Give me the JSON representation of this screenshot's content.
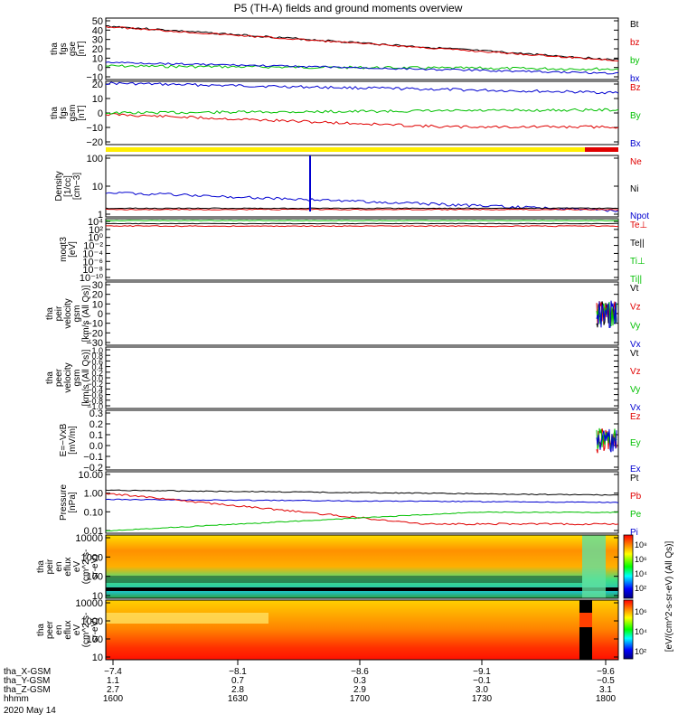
{
  "title": "P5 (TH-A) fields and ground moments overview",
  "panels": [
    {
      "id": "fgs_gse",
      "ylabel": [
        "tha",
        "fgs",
        "gse",
        "[nT]"
      ],
      "ticks": [
        "50",
        "40",
        "30",
        "20",
        "10",
        "0",
        "−10"
      ],
      "legend": [
        {
          "text": "Bt",
          "color": "#000000"
        },
        {
          "text": "bz",
          "color": "#e00000"
        },
        {
          "text": "by",
          "color": "#00c000"
        },
        {
          "text": "bx",
          "color": "#0000d0"
        }
      ]
    },
    {
      "id": "fgs_gsm",
      "ylabel": [
        "tha",
        "fgs",
        "gsm",
        "[nT]"
      ],
      "ticks": [
        "20",
        "10",
        "0",
        "−10",
        "−20"
      ],
      "legend": [
        {
          "text": "Bz",
          "color": "#e00000"
        },
        {
          "text": "By",
          "color": "#00c000"
        },
        {
          "text": "Bx",
          "color": "#0000d0"
        }
      ]
    },
    {
      "id": "density",
      "ylabel": [
        "Density",
        "[1/cc]",
        "[cm−3]"
      ],
      "ticks": [
        "100",
        "10",
        "1"
      ],
      "legend": [
        {
          "text": "Ne",
          "color": "#e00000"
        },
        {
          "text": "Ni",
          "color": "#000000"
        },
        {
          "text": "Npot",
          "color": "#0000d0"
        }
      ]
    },
    {
      "id": "temp",
      "ylabel": [
        "moqt3",
        "[eV]"
      ],
      "ticks": [
        "10⁴",
        "10²",
        "10⁰",
        "10⁻²",
        "10⁻⁴",
        "10⁻⁶",
        "10⁻⁸",
        "10⁻¹⁰"
      ],
      "legend": [
        {
          "text": "Te⊥",
          "color": "#e00000"
        },
        {
          "text": "Te||",
          "color": "#000000"
        },
        {
          "text": "Ti⊥",
          "color": "#00c000"
        },
        {
          "text": "Ti||",
          "color": "#00c000"
        }
      ]
    },
    {
      "id": "peir_vel",
      "ylabel": [
        "tha",
        "peir",
        "velocity",
        "gsm",
        "[km/s (All Qs)]"
      ],
      "ticks": [
        "30",
        "20",
        "10",
        "0",
        "−10",
        "−20",
        "−30"
      ],
      "legend": [
        {
          "text": "Vt",
          "color": "#000000"
        },
        {
          "text": "Vz",
          "color": "#e00000"
        },
        {
          "text": "Vy",
          "color": "#00c000"
        },
        {
          "text": "Vx",
          "color": "#0000d0"
        }
      ]
    },
    {
      "id": "peer_vel",
      "ylabel": [
        "tha",
        "peer",
        "velocity",
        "gsm",
        "[km/s (All Qs)]"
      ],
      "ticks": [
        "1.0",
        "0.8",
        "0.6",
        "0.4",
        "0.2",
        "0.0",
        "−0.2",
        "−0.4",
        "−0.6",
        "−0.8",
        "−1.0"
      ],
      "legend": [
        {
          "text": "Vt",
          "color": "#000000"
        },
        {
          "text": "Vz",
          "color": "#e00000"
        },
        {
          "text": "Vy",
          "color": "#00c000"
        },
        {
          "text": "Vx",
          "color": "#0000d0"
        }
      ]
    },
    {
      "id": "efield",
      "ylabel": [
        "E=−VxB",
        "[mV/m]"
      ],
      "ticks": [
        "0.3",
        "0.2",
        "0.1",
        "0.0",
        "−0.1",
        "−0.2"
      ],
      "legend": [
        {
          "text": "Ez",
          "color": "#e00000"
        },
        {
          "text": "Ey",
          "color": "#00c000"
        },
        {
          "text": "Ex",
          "color": "#0000d0"
        }
      ]
    },
    {
      "id": "pressure",
      "ylabel": [
        "Pressure",
        "[nPa]"
      ],
      "ticks": [
        "10.00",
        "1.00",
        "0.10",
        "0.01"
      ],
      "legend": [
        {
          "text": "Pt",
          "color": "#000000"
        },
        {
          "text": "Pb",
          "color": "#e00000"
        },
        {
          "text": "Pe",
          "color": "#00c000"
        },
        {
          "text": "Pi",
          "color": "#0000d0"
        }
      ]
    },
    {
      "id": "peir_en",
      "ylabel": [
        "tha",
        "peir",
        "en",
        "eflux",
        "eV",
        "(cm^2-s-",
        "sr-eV)"
      ],
      "ticks": [
        "10000",
        "1000",
        "100",
        "10"
      ],
      "legend": []
    },
    {
      "id": "peer_en",
      "ylabel": [
        "tha",
        "peer",
        "en",
        "eflux",
        "eV",
        "(cm^2-s-",
        "sr-eV)"
      ],
      "ticks": [
        "10000",
        "1000",
        "100",
        "10"
      ],
      "legend": []
    }
  ],
  "colorbar": {
    "label": "[eV/(cm^2-s-sr-eV) (All Qs)]",
    "ticks_top": [
      "10⁸",
      "10⁶",
      "10⁴",
      "10²"
    ],
    "ticks_bottom": [
      "10⁶",
      "10⁴",
      "10²"
    ]
  },
  "footer": {
    "rows": [
      {
        "label": "tha_X-GSM",
        "values": [
          "−7.4",
          "−8.1",
          "−8.6",
          "−9.1",
          "−9.6"
        ]
      },
      {
        "label": "tha_Y-GSM",
        "values": [
          "1.1",
          "0.7",
          "0.3",
          "−0.1",
          "−0.5"
        ]
      },
      {
        "label": "tha_Z-GSM",
        "values": [
          "2.7",
          "2.8",
          "2.9",
          "3.0",
          "3.1"
        ]
      },
      {
        "label": "hhmm",
        "values": [
          "1600",
          "1630",
          "1700",
          "1730",
          "1800"
        ]
      }
    ],
    "date": "2020 May 14"
  },
  "chart_data": {
    "type": "line",
    "x": [
      "1600",
      "1630",
      "1700",
      "1730",
      "1800"
    ],
    "xlabel": "hhmm",
    "series_summary": [
      {
        "panel": "fgs_gse",
        "name": "Bt",
        "values": [
          40,
          33,
          24,
          16,
          12
        ]
      },
      {
        "panel": "fgs_gse",
        "name": "bz",
        "values": [
          40,
          33,
          24,
          16,
          12
        ]
      },
      {
        "panel": "fgs_gse",
        "name": "by",
        "values": [
          3,
          2,
          0,
          0,
          0
        ]
      },
      {
        "panel": "fgs_gse",
        "name": "bx",
        "values": [
          6,
          4,
          2,
          -2,
          -8
        ]
      },
      {
        "panel": "fgs_gsm",
        "name": "Bz",
        "values": [
          -2,
          -7,
          -10,
          -11,
          -12
        ]
      },
      {
        "panel": "fgs_gsm",
        "name": "By",
        "values": [
          0,
          0,
          0,
          0,
          3
        ]
      },
      {
        "panel": "fgs_gsm",
        "name": "Bx",
        "values": [
          20,
          18,
          17,
          16,
          14
        ]
      },
      {
        "panel": "density",
        "name": "Npot",
        "values": [
          4,
          2.5,
          1.5,
          1.2,
          1.0
        ]
      },
      {
        "panel": "pressure",
        "name": "Pt",
        "values": [
          1.0,
          0.6,
          0.45,
          0.4,
          0.35
        ]
      },
      {
        "panel": "pressure",
        "name": "Pb",
        "values": [
          0.8,
          0.35,
          0.1,
          0.03,
          0.05
        ]
      },
      {
        "panel": "pressure",
        "name": "Pe",
        "values": [
          0.01,
          0.02,
          0.05,
          0.07,
          0.1
        ]
      },
      {
        "panel": "pressure",
        "name": "Pi",
        "values": [
          0.4,
          0.35,
          0.3,
          0.3,
          0.25
        ]
      }
    ]
  }
}
